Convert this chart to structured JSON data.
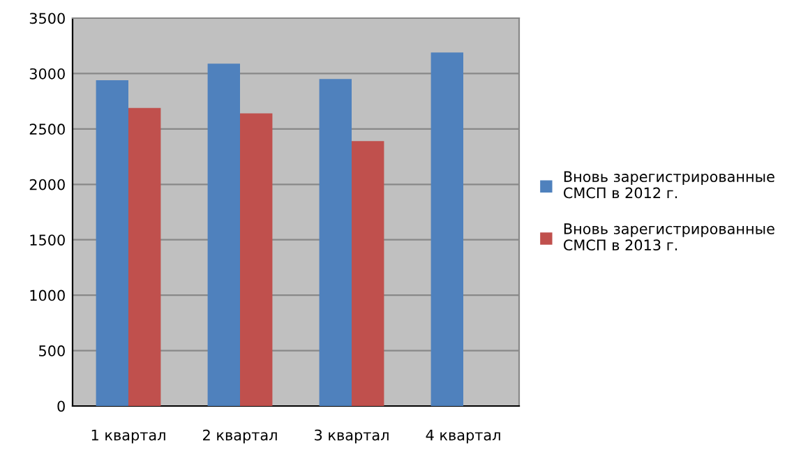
{
  "chart_data": {
    "type": "bar",
    "categories": [
      "1 квартал",
      "2 квартал",
      "3 квартал",
      "4 квартал"
    ],
    "series": [
      {
        "name": "Вновь зарегистрированные\nСМСП в 2012 г.",
        "color": "#4f81bd",
        "values": [
          2940,
          3090,
          2950,
          3190
        ]
      },
      {
        "name": "Вновь зарегистрированные\nСМСП в 2013 г.",
        "color": "#c0504d",
        "values": [
          2690,
          2640,
          2390,
          null
        ]
      }
    ],
    "ylim": [
      0,
      3500
    ],
    "yticks": [
      0,
      500,
      1000,
      1500,
      2000,
      2500,
      3000,
      3500
    ],
    "grid": "y",
    "legend": "right"
  }
}
